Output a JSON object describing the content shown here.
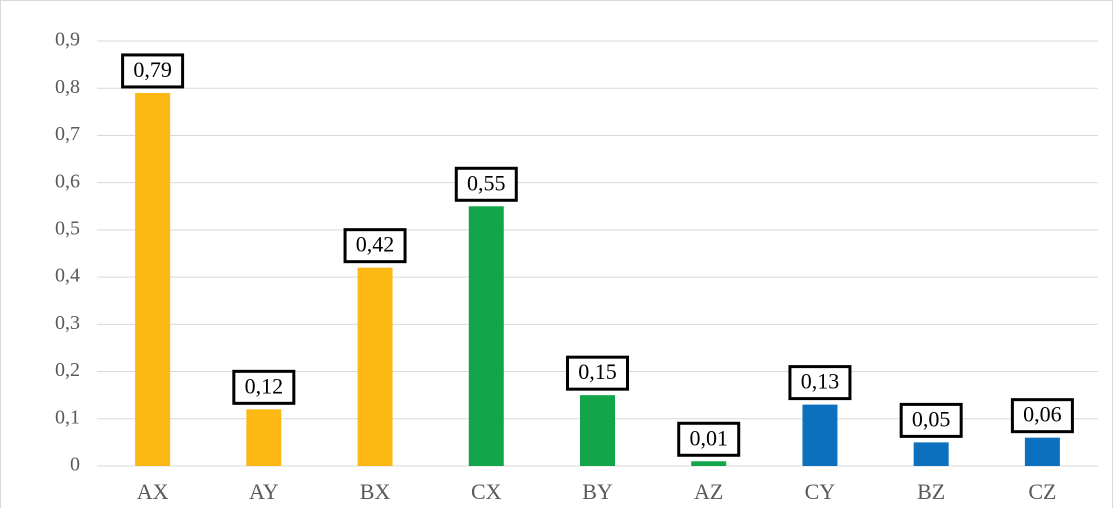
{
  "chart_data": {
    "type": "bar",
    "categories": [
      "AX",
      "AY",
      "BX",
      "CX",
      "BY",
      "AZ",
      "CY",
      "BZ",
      "CZ"
    ],
    "values": [
      0.79,
      0.12,
      0.42,
      0.55,
      0.15,
      0.01,
      0.13,
      0.05,
      0.06
    ],
    "value_labels": [
      "0,79",
      "0,12",
      "0,42",
      "0,55",
      "0,15",
      "0,01",
      "0,13",
      "0,05",
      "0,06"
    ],
    "colors": [
      "#FDB913",
      "#FDB913",
      "#FDB913",
      "#12A54A",
      "#12A54A",
      "#12A54A",
      "#0D70BF",
      "#0D70BF",
      "#0D70BF"
    ],
    "ylim": [
      0,
      0.9
    ],
    "yticks": [
      0,
      {
        "value": 0.1,
        "label": "0,1"
      },
      {
        "value": 0.2,
        "label": "0,2"
      },
      {
        "value": 0.3,
        "label": "0,3"
      },
      {
        "value": 0.4,
        "label": "0,4"
      },
      {
        "value": 0.5,
        "label": "0,5"
      },
      {
        "value": 0.6,
        "label": "0,6"
      },
      {
        "value": 0.7,
        "label": "0,7"
      },
      {
        "value": 0.8,
        "label": "0,8"
      },
      {
        "value": 0.9,
        "label": "0,9"
      }
    ],
    "grid": true
  }
}
